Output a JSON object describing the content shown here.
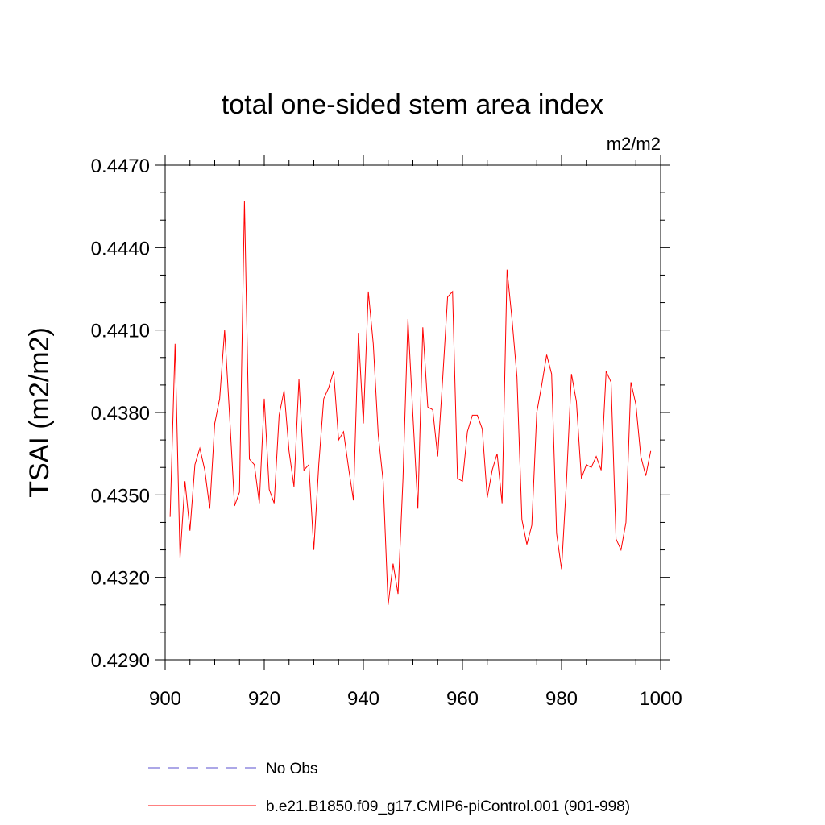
{
  "chart_data": {
    "type": "line",
    "title": "total one-sided stem area index",
    "units_label": "m2/m2",
    "ylabel": "TSAI  (m2/m2)",
    "xlabel": "",
    "xlim": [
      900,
      1000
    ],
    "ylim": [
      0.429,
      0.447
    ],
    "x_ticks": [
      "900",
      "920",
      "940",
      "960",
      "980",
      "1000"
    ],
    "y_ticks": [
      "0.4290",
      "0.4320",
      "0.4350",
      "0.4380",
      "0.4410",
      "0.4440",
      "0.4470"
    ],
    "grid": false,
    "legend_position": "bottom",
    "series": [
      {
        "name": "b.e21.B1850.f09_g17.CMIP6-piControl.001 (901-998)",
        "color": "#ff0000",
        "style": "solid",
        "x": [
          901,
          902,
          903,
          904,
          905,
          906,
          907,
          908,
          909,
          910,
          911,
          912,
          913,
          914,
          915,
          916,
          917,
          918,
          919,
          920,
          921,
          922,
          923,
          924,
          925,
          926,
          927,
          928,
          929,
          930,
          931,
          932,
          933,
          934,
          935,
          936,
          937,
          938,
          939,
          940,
          941,
          942,
          943,
          944,
          945,
          946,
          947,
          948,
          949,
          950,
          951,
          952,
          953,
          954,
          955,
          956,
          957,
          958,
          959,
          960,
          961,
          962,
          963,
          964,
          965,
          966,
          967,
          968,
          969,
          970,
          971,
          972,
          973,
          974,
          975,
          976,
          977,
          978,
          979,
          980,
          981,
          982,
          983,
          984,
          985,
          986,
          987,
          988,
          989,
          990,
          991,
          992,
          993,
          994,
          995,
          996,
          997,
          998
        ],
        "values": [
          0.4342,
          0.4405,
          0.4327,
          0.4355,
          0.4337,
          0.4361,
          0.4367,
          0.4359,
          0.4345,
          0.4376,
          0.4385,
          0.441,
          0.4379,
          0.4346,
          0.4351,
          0.4457,
          0.4363,
          0.4361,
          0.4347,
          0.4385,
          0.4352,
          0.4347,
          0.4379,
          0.4388,
          0.4366,
          0.4353,
          0.4392,
          0.4359,
          0.4361,
          0.433,
          0.4361,
          0.4385,
          0.4389,
          0.4395,
          0.437,
          0.4373,
          0.436,
          0.4348,
          0.4409,
          0.4376,
          0.4424,
          0.4405,
          0.4372,
          0.4355,
          0.431,
          0.4325,
          0.4314,
          0.4356,
          0.4414,
          0.4379,
          0.4345,
          0.4411,
          0.4382,
          0.4381,
          0.4364,
          0.4392,
          0.4422,
          0.4424,
          0.4356,
          0.4355,
          0.4373,
          0.4379,
          0.4379,
          0.4374,
          0.4349,
          0.4359,
          0.4365,
          0.4347,
          0.4432,
          0.4414,
          0.4393,
          0.4341,
          0.4332,
          0.4339,
          0.438,
          0.439,
          0.4401,
          0.4394,
          0.4336,
          0.4323,
          0.4355,
          0.4394,
          0.4384,
          0.4356,
          0.4361,
          0.436,
          0.4364,
          0.4359,
          0.4395,
          0.4391,
          0.4334,
          0.433,
          0.434,
          0.4391,
          0.4383,
          0.4364,
          0.4357,
          0.4366
        ]
      },
      {
        "name": "No Obs",
        "color": "#5a4fcf",
        "style": "dashed",
        "x": [],
        "values": []
      }
    ]
  }
}
